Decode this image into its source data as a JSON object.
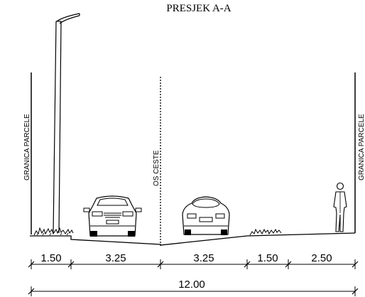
{
  "title": "PRESJEK A-A",
  "labels": {
    "boundary_left": "GRANICA PARCELE",
    "boundary_right": "GRANICA PARCELE",
    "axis": "OS CESTE"
  },
  "segment_dimensions": [
    "1.50",
    "3.25",
    "3.25",
    "1.50",
    "2.50"
  ],
  "total_dimension": "12.00",
  "icons": [
    "street-lamp-icon",
    "car-front-icon",
    "car-rear-icon",
    "pedestrian-icon",
    "vegetation-icon"
  ]
}
